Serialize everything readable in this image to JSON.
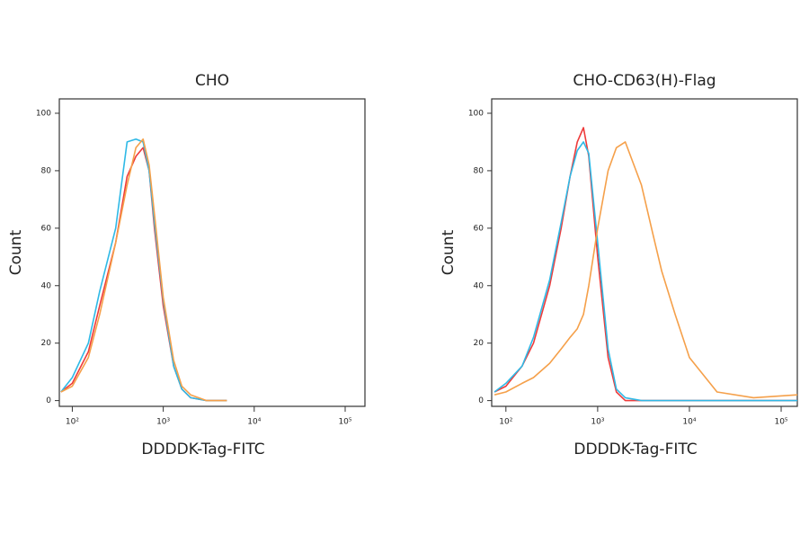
{
  "chart_data": [
    {
      "type": "line",
      "title": "CHO",
      "x_label": "DDDDK-Tag-FITC",
      "y_label": "Count",
      "log_x": true,
      "xlim": [
        72,
        165000
      ],
      "ylim": [
        -2,
        105
      ],
      "xticks": [
        {
          "value": 100,
          "label": "10²"
        },
        {
          "value": 1000,
          "label": "10³"
        },
        {
          "value": 10000,
          "label": "10⁴"
        },
        {
          "value": 100000,
          "label": "10⁵"
        }
      ],
      "yticks": [
        0,
        20,
        40,
        60,
        80,
        100
      ],
      "x": [
        75,
        100,
        150,
        200,
        300,
        400,
        500,
        600,
        700,
        800,
        1000,
        1300,
        1600,
        2000,
        3000,
        5000
      ],
      "series": [
        {
          "color": "#ee3b3b",
          "values": [
            3,
            6,
            17,
            33,
            55,
            78,
            85,
            88,
            80,
            60,
            33,
            12,
            4,
            1,
            0,
            0
          ]
        },
        {
          "color": "#2fb9e6",
          "values": [
            3,
            8,
            20,
            38,
            60,
            90,
            91,
            90,
            80,
            62,
            35,
            12,
            4,
            1,
            0,
            0
          ]
        },
        {
          "color": "#f5a04a",
          "values": [
            3,
            5,
            15,
            30,
            55,
            75,
            88,
            91,
            82,
            65,
            36,
            14,
            5,
            2,
            0,
            0
          ]
        }
      ]
    },
    {
      "type": "line",
      "title": "CHO-CD63(H)-Flag",
      "x_label": "DDDDK-Tag-FITC",
      "y_label": "Count",
      "log_x": true,
      "xlim": [
        70,
        150000
      ],
      "ylim": [
        -2,
        105
      ],
      "xticks": [
        {
          "value": 100,
          "label": "10²"
        },
        {
          "value": 1000,
          "label": "10³"
        },
        {
          "value": 10000,
          "label": "10⁴"
        },
        {
          "value": 100000,
          "label": "10⁵"
        }
      ],
      "yticks": [
        0,
        20,
        40,
        60,
        80,
        100
      ],
      "x": [
        75,
        100,
        150,
        200,
        300,
        400,
        500,
        600,
        700,
        800,
        1000,
        1300,
        1600,
        2000,
        3000,
        4000,
        5000,
        7000,
        10000,
        20000,
        50000,
        150000
      ],
      "series": [
        {
          "color": "#ee3b3b",
          "values": [
            3,
            5,
            12,
            20,
            40,
            60,
            78,
            90,
            95,
            85,
            50,
            15,
            3,
            0,
            0,
            0,
            0,
            0,
            0,
            0,
            0,
            0
          ]
        },
        {
          "color": "#2fb9e6",
          "values": [
            3,
            6,
            12,
            22,
            42,
            62,
            78,
            87,
            90,
            86,
            55,
            18,
            4,
            1,
            0,
            0,
            0,
            0,
            0,
            0,
            0,
            0
          ]
        },
        {
          "color": "#f5a04a",
          "values": [
            2,
            3,
            6,
            8,
            13,
            18,
            22,
            25,
            30,
            40,
            60,
            80,
            88,
            90,
            75,
            58,
            45,
            30,
            15,
            3,
            1,
            2
          ]
        }
      ]
    }
  ]
}
